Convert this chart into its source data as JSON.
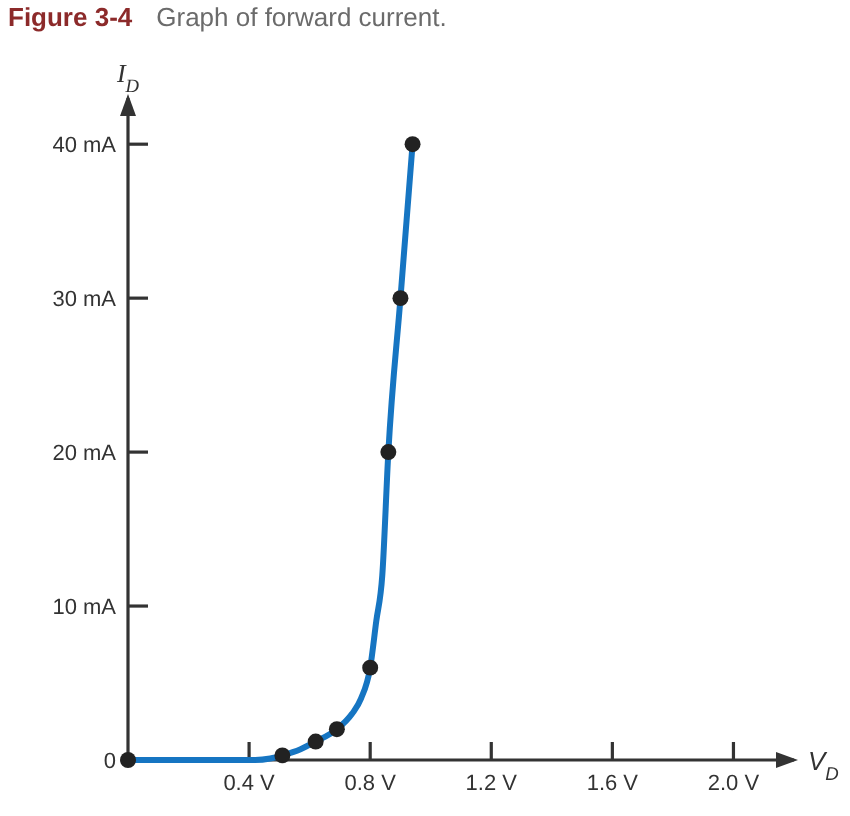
{
  "chart_data": {
    "type": "line",
    "title": "Figure 3-4",
    "subtitle": "Graph of forward current.",
    "xlabel": "V$_{D}$",
    "ylabel": "I$_{D}$",
    "xlim": [
      0,
      2.2
    ],
    "ylim": [
      0,
      43
    ],
    "xticks": [
      {
        "value": 0.4,
        "label": "0.4 V"
      },
      {
        "value": 0.8,
        "label": "0.8 V"
      },
      {
        "value": 1.2,
        "label": "1.2 V"
      },
      {
        "value": 1.6,
        "label": "1.6 V"
      },
      {
        "value": 2.0,
        "label": "2.0 V"
      }
    ],
    "yticks": [
      {
        "value": 0,
        "label": "0"
      },
      {
        "value": 10,
        "label": "10 mA"
      },
      {
        "value": 20,
        "label": "20 mA"
      },
      {
        "value": 30,
        "label": "30 mA"
      },
      {
        "value": 40,
        "label": "40 mA"
      }
    ],
    "series": [
      {
        "color": "#1675c2",
        "marker": "none",
        "x": [
          0,
          0.42,
          0.47,
          0.51,
          0.57,
          0.62,
          0.69,
          0.74,
          0.77,
          0.8,
          0.82,
          0.84,
          0.86,
          0.9,
          0.94
        ],
        "values": [
          0,
          0,
          0.1,
          0.3,
          0.7,
          1.2,
          2,
          3,
          4,
          6,
          9,
          12,
          20,
          30,
          40
        ]
      },
      {
        "type": "scatter",
        "color": "#222222",
        "marker": "circle",
        "x": [
          0,
          0.51,
          0.62,
          0.69,
          0.8,
          0.86,
          0.9,
          0.94
        ],
        "values": [
          0,
          0.3,
          1.2,
          2,
          6,
          20,
          30,
          40
        ]
      }
    ]
  }
}
